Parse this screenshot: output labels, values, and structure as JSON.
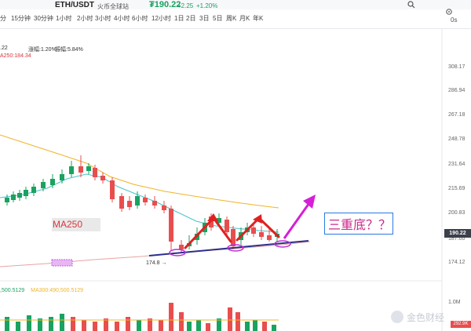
{
  "header": {
    "pair": "ETH/USDT",
    "exchange": "火币全球站",
    "price": "₮190.22",
    "change_abs": "+2.25",
    "change_pct": "+1.20%"
  },
  "timeframes": [
    "分",
    "15分钟",
    "30分钟",
    "1小时",
    "2小时",
    "3小时",
    "4小时",
    "6小时",
    "12小时",
    "1日",
    "2日",
    "3日",
    "5日",
    "周K",
    "月K",
    "年K"
  ],
  "toolbar": {
    "os_label": "0s"
  },
  "info_bar": {
    "price_fragment": ".22",
    "change_label": "涨幅:1.20%",
    "amplitude_label": "振幅:5.84%",
    "ma_label": "A250:184.34"
  },
  "y_axis": {
    "ticks": [
      "308.17",
      "286.94",
      "267.18",
      "248.78",
      "231.64",
      "215.69",
      "200.83",
      "187.00",
      "174.12"
    ],
    "current_price": "190.22"
  },
  "annotations": {
    "ma250": "MA250",
    "pattern_note": "三重底？？",
    "low_label": "174.8 →"
  },
  "volume": {
    "info_prefix": ",500.5129",
    "ma_info": "MA300:490,500.5129",
    "axis_top": "1.0M",
    "axis_tag": "292.9K"
  },
  "watermark": "金色财经",
  "colors": {
    "up": "#1aa261",
    "down": "#e84e4e",
    "ma_orange": "#f0b429",
    "ma_teal": "#4cc3c7",
    "ma250_line": "#e8a3a3",
    "trendline": "#2b2f8a",
    "arrow_red": "#e02020",
    "arrow_magenta": "#d61fd6"
  },
  "icons": {
    "search": "search-icon",
    "settings": "settings-icon"
  }
}
